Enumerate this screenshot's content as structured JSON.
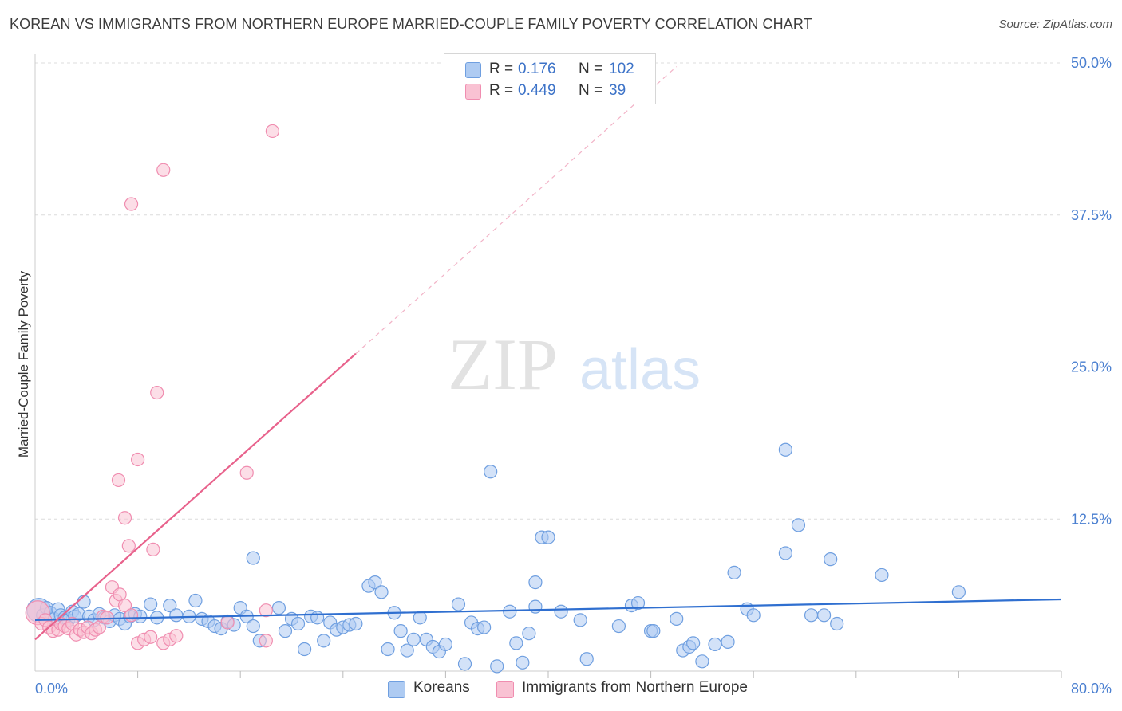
{
  "title": "KOREAN VS IMMIGRANTS FROM NORTHERN EUROPE MARRIED-COUPLE FAMILY POVERTY CORRELATION CHART",
  "source": "Source: ZipAtlas.com",
  "watermark": {
    "zip": "ZIP",
    "atlas": "atlas"
  },
  "colors": {
    "blue_fill": "#aecbf2",
    "blue_stroke": "#6f9fe0",
    "blue_line": "#2f6fd0",
    "pink_fill": "#f9c2d3",
    "pink_stroke": "#f08db0",
    "pink_line": "#e8628c",
    "accent_text": "#3d73c8",
    "grid": "#dcdcdc"
  },
  "legend": {
    "rows": [
      {
        "r_label": "R =",
        "r_value": "0.176",
        "n_label": "N =",
        "n_value": "102"
      },
      {
        "r_label": "R =",
        "r_value": "0.449",
        "n_label": "N =",
        "n_value": "39"
      }
    ]
  },
  "bottom_legend": {
    "series1": "Koreans",
    "series2": "Immigrants from Northern Europe"
  },
  "chart_data": {
    "type": "scatter",
    "title": "KOREAN VS IMMIGRANTS FROM NORTHERN EUROPE MARRIED-COUPLE FAMILY POVERTY CORRELATION CHART",
    "xlabel": "",
    "ylabel": "Married-Couple Family Poverty",
    "xlim": [
      0,
      80
    ],
    "ylim": [
      0,
      50
    ],
    "x_tick_labels": [
      "0.0%",
      "80.0%"
    ],
    "y_ticks": [
      12.5,
      25,
      37.5,
      50
    ],
    "y_tick_labels": [
      "12.5%",
      "25.0%",
      "37.5%",
      "50.0%"
    ],
    "grid": true,
    "legend_position": "top-center",
    "series": [
      {
        "name": "Koreans",
        "R": 0.176,
        "N": 102,
        "trend": {
          "x": [
            0,
            80
          ],
          "y": [
            4.2,
            5.9
          ],
          "dashed_extension": false
        },
        "points": [
          [
            0.3,
            5.0
          ],
          [
            0.6,
            4.6
          ],
          [
            0.9,
            5.2
          ],
          [
            1.2,
            4.8
          ],
          [
            1.5,
            4.3
          ],
          [
            1.8,
            5.1
          ],
          [
            2.0,
            4.6
          ],
          [
            2.3,
            4.4
          ],
          [
            2.6,
            4.2
          ],
          [
            2.9,
            4.9
          ],
          [
            3.1,
            4.5
          ],
          [
            3.4,
            4.7
          ],
          [
            3.8,
            5.7
          ],
          [
            4.2,
            4.5
          ],
          [
            4.6,
            4.2
          ],
          [
            5.0,
            4.7
          ],
          [
            5.4,
            4.4
          ],
          [
            5.8,
            4.1
          ],
          [
            6.2,
            4.6
          ],
          [
            6.6,
            4.3
          ],
          [
            7.0,
            3.9
          ],
          [
            7.4,
            4.5
          ],
          [
            7.8,
            4.7
          ],
          [
            8.2,
            4.5
          ],
          [
            9.0,
            5.5
          ],
          [
            9.5,
            4.4
          ],
          [
            10.5,
            5.4
          ],
          [
            11.0,
            4.6
          ],
          [
            12.0,
            4.5
          ],
          [
            12.5,
            5.8
          ],
          [
            13.0,
            4.3
          ],
          [
            13.5,
            4.1
          ],
          [
            14.0,
            3.7
          ],
          [
            14.5,
            3.5
          ],
          [
            15.0,
            4.1
          ],
          [
            15.5,
            3.8
          ],
          [
            16.0,
            5.2
          ],
          [
            16.5,
            4.5
          ],
          [
            17.0,
            3.7
          ],
          [
            17.5,
            2.5
          ],
          [
            17.0,
            9.3
          ],
          [
            19.0,
            5.2
          ],
          [
            19.5,
            3.3
          ],
          [
            20.0,
            4.3
          ],
          [
            20.5,
            3.9
          ],
          [
            21.0,
            1.8
          ],
          [
            21.5,
            4.5
          ],
          [
            22.0,
            4.4
          ],
          [
            22.5,
            2.5
          ],
          [
            23.0,
            4.0
          ],
          [
            23.5,
            3.4
          ],
          [
            24.0,
            3.6
          ],
          [
            24.5,
            3.8
          ],
          [
            25.0,
            3.9
          ],
          [
            26.0,
            7.0
          ],
          [
            26.5,
            7.3
          ],
          [
            27.0,
            6.5
          ],
          [
            27.5,
            1.8
          ],
          [
            28.0,
            4.8
          ],
          [
            28.5,
            3.3
          ],
          [
            29.0,
            1.7
          ],
          [
            29.5,
            2.6
          ],
          [
            30.0,
            4.4
          ],
          [
            30.5,
            2.6
          ],
          [
            31.0,
            2.0
          ],
          [
            31.5,
            1.6
          ],
          [
            32.0,
            2.2
          ],
          [
            33.0,
            5.5
          ],
          [
            33.5,
            0.6
          ],
          [
            34.0,
            4.0
          ],
          [
            34.5,
            3.5
          ],
          [
            35.0,
            3.6
          ],
          [
            35.5,
            16.4
          ],
          [
            36.0,
            0.4
          ],
          [
            37.0,
            4.9
          ],
          [
            37.5,
            2.3
          ],
          [
            38.0,
            0.7
          ],
          [
            38.5,
            3.1
          ],
          [
            39.0,
            7.3
          ],
          [
            39.0,
            5.3
          ],
          [
            39.5,
            11.0
          ],
          [
            40.0,
            11.0
          ],
          [
            41.0,
            4.9
          ],
          [
            42.5,
            4.2
          ],
          [
            43.0,
            1.0
          ],
          [
            45.5,
            3.7
          ],
          [
            46.5,
            5.4
          ],
          [
            47.0,
            5.6
          ],
          [
            48.0,
            3.3
          ],
          [
            48.2,
            3.3
          ],
          [
            50.0,
            4.3
          ],
          [
            50.5,
            1.7
          ],
          [
            51.0,
            2.0
          ],
          [
            51.3,
            2.3
          ],
          [
            52.0,
            0.8
          ],
          [
            53.0,
            2.2
          ],
          [
            54.0,
            2.4
          ],
          [
            54.5,
            8.1
          ],
          [
            55.5,
            5.1
          ],
          [
            56.0,
            4.6
          ],
          [
            58.5,
            18.2
          ],
          [
            58.5,
            9.7
          ],
          [
            59.5,
            12.0
          ],
          [
            60.5,
            4.6
          ],
          [
            61.5,
            4.6
          ],
          [
            62.0,
            9.2
          ],
          [
            62.5,
            3.9
          ],
          [
            66.0,
            7.9
          ],
          [
            72.0,
            6.5
          ]
        ]
      },
      {
        "name": "Immigrants from Northern Europe",
        "R": 0.449,
        "N": 39,
        "trend": {
          "x": [
            0,
            25
          ],
          "y": [
            2.6,
            26.1
          ],
          "dashed_extension": {
            "x": [
              25,
              50
            ],
            "y": [
              26.1,
              49.7
            ]
          }
        },
        "points": [
          [
            0.2,
            4.8
          ],
          [
            0.5,
            3.9
          ],
          [
            0.8,
            4.2
          ],
          [
            1.1,
            3.6
          ],
          [
            1.4,
            3.3
          ],
          [
            1.8,
            3.4
          ],
          [
            2.0,
            3.9
          ],
          [
            2.3,
            3.7
          ],
          [
            2.6,
            3.5
          ],
          [
            2.9,
            3.9
          ],
          [
            3.2,
            3.0
          ],
          [
            3.5,
            3.4
          ],
          [
            3.8,
            3.2
          ],
          [
            4.1,
            3.6
          ],
          [
            4.4,
            3.1
          ],
          [
            4.7,
            3.4
          ],
          [
            5.0,
            3.6
          ],
          [
            5.3,
            4.5
          ],
          [
            5.6,
            4.4
          ],
          [
            6.0,
            6.9
          ],
          [
            6.3,
            5.8
          ],
          [
            6.6,
            6.3
          ],
          [
            7.0,
            5.4
          ],
          [
            7.5,
            4.6
          ],
          [
            8.0,
            2.3
          ],
          [
            8.5,
            2.6
          ],
          [
            9.0,
            2.8
          ],
          [
            10.0,
            2.3
          ],
          [
            10.5,
            2.6
          ],
          [
            11.0,
            2.9
          ],
          [
            6.5,
            15.7
          ],
          [
            7.0,
            12.6
          ],
          [
            7.3,
            10.3
          ],
          [
            7.5,
            38.4
          ],
          [
            8.0,
            17.4
          ],
          [
            9.2,
            10.0
          ],
          [
            9.5,
            22.9
          ],
          [
            10.0,
            41.2
          ],
          [
            16.5,
            16.3
          ],
          [
            18.5,
            44.4
          ],
          [
            15.0,
            4.0
          ],
          [
            18.0,
            5.0
          ],
          [
            18.0,
            2.5
          ]
        ]
      }
    ]
  }
}
